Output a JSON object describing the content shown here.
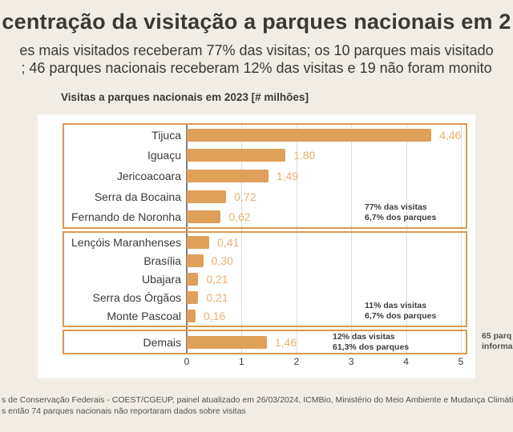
{
  "page": {
    "title": "centração da visitação a parques nacionais em 2",
    "subtitle_line1": "es mais visitados receberam 77% das visitas; os 10 parques mais visitado",
    "subtitle_line2": "; 46 parques nacionais receberam 12% das visitas e 19 não foram monito",
    "side_note_line1": "65 parq",
    "side_note_line2": "informa",
    "footer_line1": "s de Conservação Federais - COEST/CGEUP, painel atualizado em 26/03/2024, ICMBio, Ministério do Meio Ambiente e Mudança Climática; con",
    "footer_line2": "s então 74 parques nacionais não reportaram dados sobre visitas"
  },
  "chart_data": {
    "type": "bar",
    "orientation": "horizontal",
    "title": "Visitas a parques nacionais em 2023 [# milhões]",
    "xlabel": "",
    "ylabel": "",
    "xlim": [
      0,
      5
    ],
    "x_ticks": [
      0,
      1,
      2,
      3,
      4,
      5
    ],
    "grid": true,
    "groups": [
      {
        "annotation": [
          "77% das visitas",
          "6,7% dos parques"
        ],
        "bars": [
          {
            "label": "Tijuca",
            "value": 4.46,
            "value_label": "4,46"
          },
          {
            "label": "Iguaçu",
            "value": 1.8,
            "value_label": "1,80"
          },
          {
            "label": "Jericoacoara",
            "value": 1.49,
            "value_label": "1,49"
          },
          {
            "label": "Serra da Bocaina",
            "value": 0.72,
            "value_label": "0,72"
          },
          {
            "label": "Fernando de Noronha",
            "value": 0.62,
            "value_label": "0,62"
          }
        ]
      },
      {
        "annotation": [
          "11% das visitas",
          "6,7% dos parques"
        ],
        "bars": [
          {
            "label": "Lençóis Maranhenses",
            "value": 0.41,
            "value_label": "0,41"
          },
          {
            "label": "Brasília",
            "value": 0.3,
            "value_label": "0,30"
          },
          {
            "label": "Ubajara",
            "value": 0.21,
            "value_label": "0,21"
          },
          {
            "label": "Serra dos Órgãos",
            "value": 0.21,
            "value_label": "0,21"
          },
          {
            "label": "Monte Pascoal",
            "value": 0.16,
            "value_label": "0,16"
          }
        ]
      },
      {
        "annotation": [
          "12% das visitas",
          "61,3% dos parques"
        ],
        "bars": [
          {
            "label": "Demais",
            "value": 1.46,
            "value_label": "1,46"
          }
        ]
      }
    ]
  },
  "colors": {
    "background": "#f2ede4",
    "bar": "#dfa05a",
    "box_border": "#d99a4f",
    "value_label": "#e9b173",
    "text_dark": "#3b3936",
    "footer_text": "#55524d"
  }
}
